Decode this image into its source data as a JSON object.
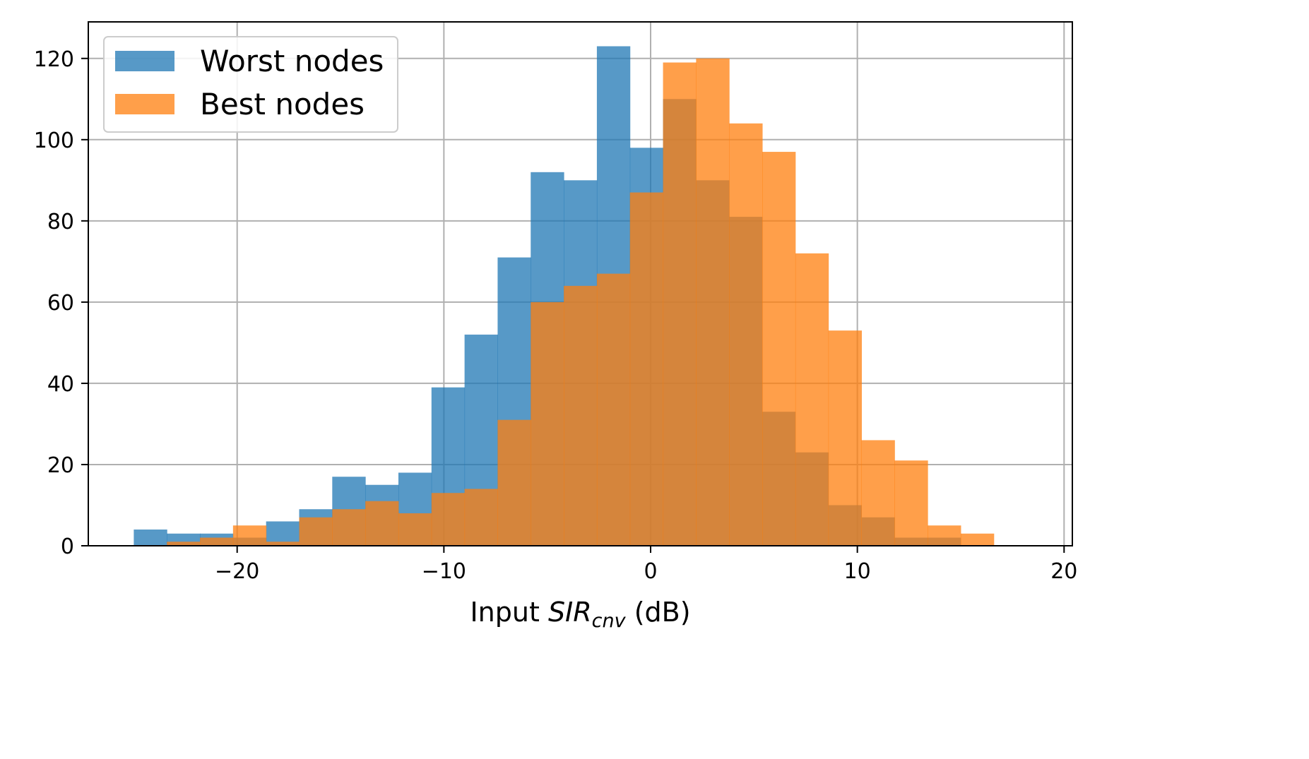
{
  "chart_data": {
    "type": "histogram",
    "title": "",
    "xlabel": "Input SIRcnv (dB)",
    "xlabel_parts": {
      "prefix": "Input ",
      "main": "SIR",
      "sub": "cnv",
      "suffix": " (dB)"
    },
    "ylabel": "",
    "xlim": [
      -27.2,
      20.4
    ],
    "ylim": [
      0,
      129
    ],
    "xticks": [
      -20,
      -10,
      0,
      10,
      20
    ],
    "xtick_labels": [
      "−20",
      "−10",
      "0",
      "10",
      "20"
    ],
    "yticks": [
      0,
      20,
      40,
      60,
      80,
      100,
      120
    ],
    "ytick_labels": [
      "0",
      "20",
      "40",
      "60",
      "80",
      "100",
      "120"
    ],
    "grid": true,
    "legend_position": "upper-left",
    "series": [
      {
        "name": "Worst nodes",
        "color": "#1f77b4",
        "bin_edges": [
          -25.0,
          -23.4,
          -21.8,
          -20.2,
          -18.6,
          -17.0,
          -15.4,
          -13.8,
          -12.2,
          -10.6,
          -9.0,
          -7.4,
          -5.8,
          -4.2,
          -2.6,
          -1.0,
          0.6,
          2.2
        ],
        "counts": [
          4,
          3,
          3,
          2,
          6,
          9,
          17,
          15,
          18,
          39,
          52,
          71,
          92,
          90,
          123,
          98,
          110
        ]
      },
      {
        "name": "Best nodes",
        "color": "#ff7f0e",
        "bin_edges": [
          -23.4,
          -21.8,
          -20.2,
          -18.6,
          -17.0,
          -15.4,
          -13.8,
          -12.2,
          -10.6,
          -9.0,
          -7.4,
          -5.8,
          -4.2,
          -2.6,
          -1.0,
          0.6,
          2.2,
          3.8,
          5.4,
          7.0,
          8.6,
          10.2,
          11.8,
          13.4,
          15.0,
          16.6,
          18.2
        ],
        "counts": [
          1,
          2,
          5,
          1,
          7,
          9,
          11,
          8,
          13,
          14,
          31,
          60,
          64,
          67,
          87,
          119,
          120,
          104,
          97,
          72,
          53,
          26,
          21,
          5,
          3,
          0
        ]
      }
    ],
    "extra_worst_bins": {
      "note": "remaining Worst-nodes bins to the right",
      "bin_edges": [
        2.2,
        3.8,
        5.4,
        7.0,
        8.6,
        10.2,
        11.8,
        13.4,
        15.0
      ],
      "counts": [
        90,
        81,
        33,
        23,
        10,
        7,
        2,
        2
      ]
    }
  }
}
